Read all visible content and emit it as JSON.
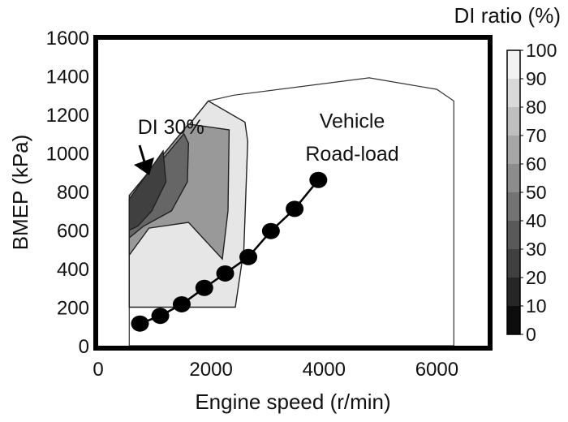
{
  "chart_data": {
    "type": "heatmap",
    "title": "",
    "xlabel": "Engine speed (r/min)",
    "ylabel": "BMEP (kPa)",
    "xlim": [
      0,
      6900
    ],
    "ylim": [
      0,
      1600
    ],
    "x_ticks": [
      0,
      2000,
      4000,
      6000
    ],
    "y_ticks": [
      0,
      200,
      400,
      600,
      800,
      1000,
      1200,
      1400,
      1600
    ],
    "grid": false,
    "colorbar": {
      "label": "DI ratio (%)",
      "ticks": [
        0,
        10,
        20,
        30,
        40,
        50,
        60,
        70,
        80,
        90,
        100
      ],
      "color_low": "#000000",
      "color_high": "#ffffff"
    },
    "annotations": [
      {
        "text": "DI 30%",
        "x": 700,
        "y": 1100
      },
      {
        "text": "Vehicle",
        "x": 4500,
        "y": 1130
      },
      {
        "text": "Road-load",
        "x": 4500,
        "y": 960
      }
    ],
    "operating_boundary": [
      [
        550,
        0
      ],
      [
        550,
        760
      ],
      [
        1950,
        1270
      ],
      [
        2400,
        1300
      ],
      [
        4800,
        1390
      ],
      [
        6000,
        1330
      ],
      [
        6300,
        1270
      ],
      [
        6300,
        0
      ]
    ],
    "contour_regions": [
      {
        "di_ratio": 90,
        "polygon": [
          [
            550,
            200
          ],
          [
            550,
            760
          ],
          [
            1950,
            1270
          ],
          [
            2600,
            1160
          ],
          [
            2650,
            1060
          ],
          [
            2580,
            500
          ],
          [
            2430,
            200
          ],
          [
            550,
            200
          ]
        ]
      },
      {
        "di_ratio": 60,
        "polygon": [
          [
            550,
            470
          ],
          [
            550,
            780
          ],
          [
            1600,
            1150
          ],
          [
            2320,
            1120
          ],
          [
            2300,
            700
          ],
          [
            2200,
            450
          ],
          [
            1600,
            640
          ],
          [
            900,
            610
          ]
        ]
      },
      {
        "di_ratio": 40,
        "polygon": [
          [
            550,
            560
          ],
          [
            550,
            760
          ],
          [
            1520,
            1100
          ],
          [
            1600,
            1050
          ],
          [
            1580,
            850
          ],
          [
            1300,
            700
          ],
          [
            800,
            620
          ]
        ]
      },
      {
        "di_ratio": 25,
        "polygon": [
          [
            550,
            600
          ],
          [
            550,
            760
          ],
          [
            1150,
            1010
          ],
          [
            1200,
            850
          ],
          [
            950,
            700
          ],
          [
            700,
            620
          ]
        ]
      }
    ],
    "road_load": {
      "name": "Vehicle Road-load",
      "x": [
        740,
        1100,
        1480,
        1880,
        2250,
        2660,
        3060,
        3480,
        3900
      ],
      "y": [
        115,
        155,
        215,
        300,
        375,
        460,
        595,
        710,
        860
      ]
    }
  }
}
